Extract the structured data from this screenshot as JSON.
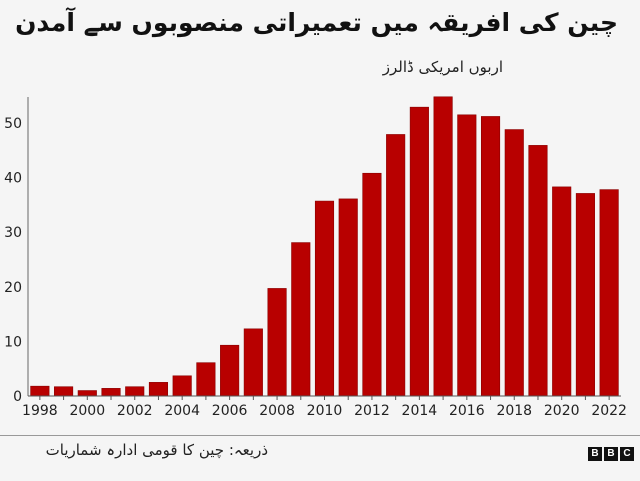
{
  "header": {
    "title": "چین کی افریقہ میں تعمیراتی منصوبوں سے آمدن",
    "subtitle": "اربوں امریکی ڈالرز"
  },
  "footer": {
    "source": "ذریعہ: چین کا قومی ادارہ شماریات",
    "logo_letters": [
      "B",
      "B",
      "C"
    ]
  },
  "chart_data": {
    "type": "bar",
    "title": "چین کی افریقہ میں تعمیراتی منصوبوں سے آمدن",
    "ylabel": "اربوں امریکی ڈالرز",
    "xlabel": "",
    "ylim": [
      0,
      55
    ],
    "yticks": [
      0,
      10,
      20,
      30,
      40,
      50
    ],
    "grid": false,
    "bar_color": "#b80000",
    "categories": [
      "1998",
      "1999",
      "2000",
      "2001",
      "2002",
      "2003",
      "2004",
      "2005",
      "2006",
      "2007",
      "2008",
      "2009",
      "2010",
      "2011",
      "2012",
      "2013",
      "2014",
      "2015",
      "2016",
      "2017",
      "2018",
      "2019",
      "2020",
      "2021",
      "2022"
    ],
    "xtick_labels": [
      "1998",
      "2000",
      "2002",
      "2004",
      "2006",
      "2008",
      "2010",
      "2012",
      "2014",
      "2016",
      "2018",
      "2020",
      "2022"
    ],
    "values": [
      1.8,
      1.7,
      1.0,
      1.4,
      1.7,
      2.5,
      3.7,
      6.1,
      9.3,
      12.3,
      19.7,
      28.1,
      35.7,
      36.1,
      40.8,
      47.9,
      52.9,
      54.8,
      51.5,
      51.2,
      48.8,
      45.9,
      38.3,
      37.1,
      37.8
    ]
  }
}
